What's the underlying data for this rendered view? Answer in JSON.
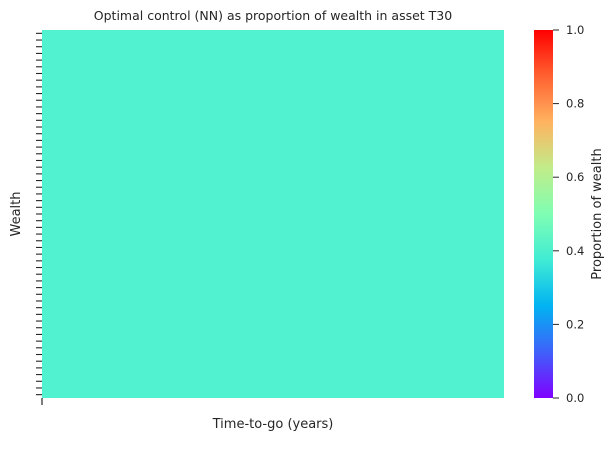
{
  "chart_data": {
    "type": "heatmap",
    "title": "Optimal control (NN) as proportion of wealth in asset T30",
    "xlabel": "Time-to-go (years)",
    "ylabel": "Wealth",
    "uniform_value": 0.42,
    "cell_color": "#50f2d0",
    "n_y_ticks": 55,
    "n_x_ticks": 1,
    "colorbar": {
      "label": "Proportion of wealth",
      "range": [
        0.0,
        1.0
      ],
      "ticks": [
        "0.0",
        "0.2",
        "0.4",
        "0.6",
        "0.8",
        "1.0"
      ],
      "colormap": "rainbow",
      "color_stops": [
        "#8000ff",
        "#3f61fa",
        "#01b3f2",
        "#40ecd4",
        "#7ffeb3",
        "#c1ec89",
        "#ffb360",
        "#ff6130",
        "#ff0000"
      ]
    }
  }
}
